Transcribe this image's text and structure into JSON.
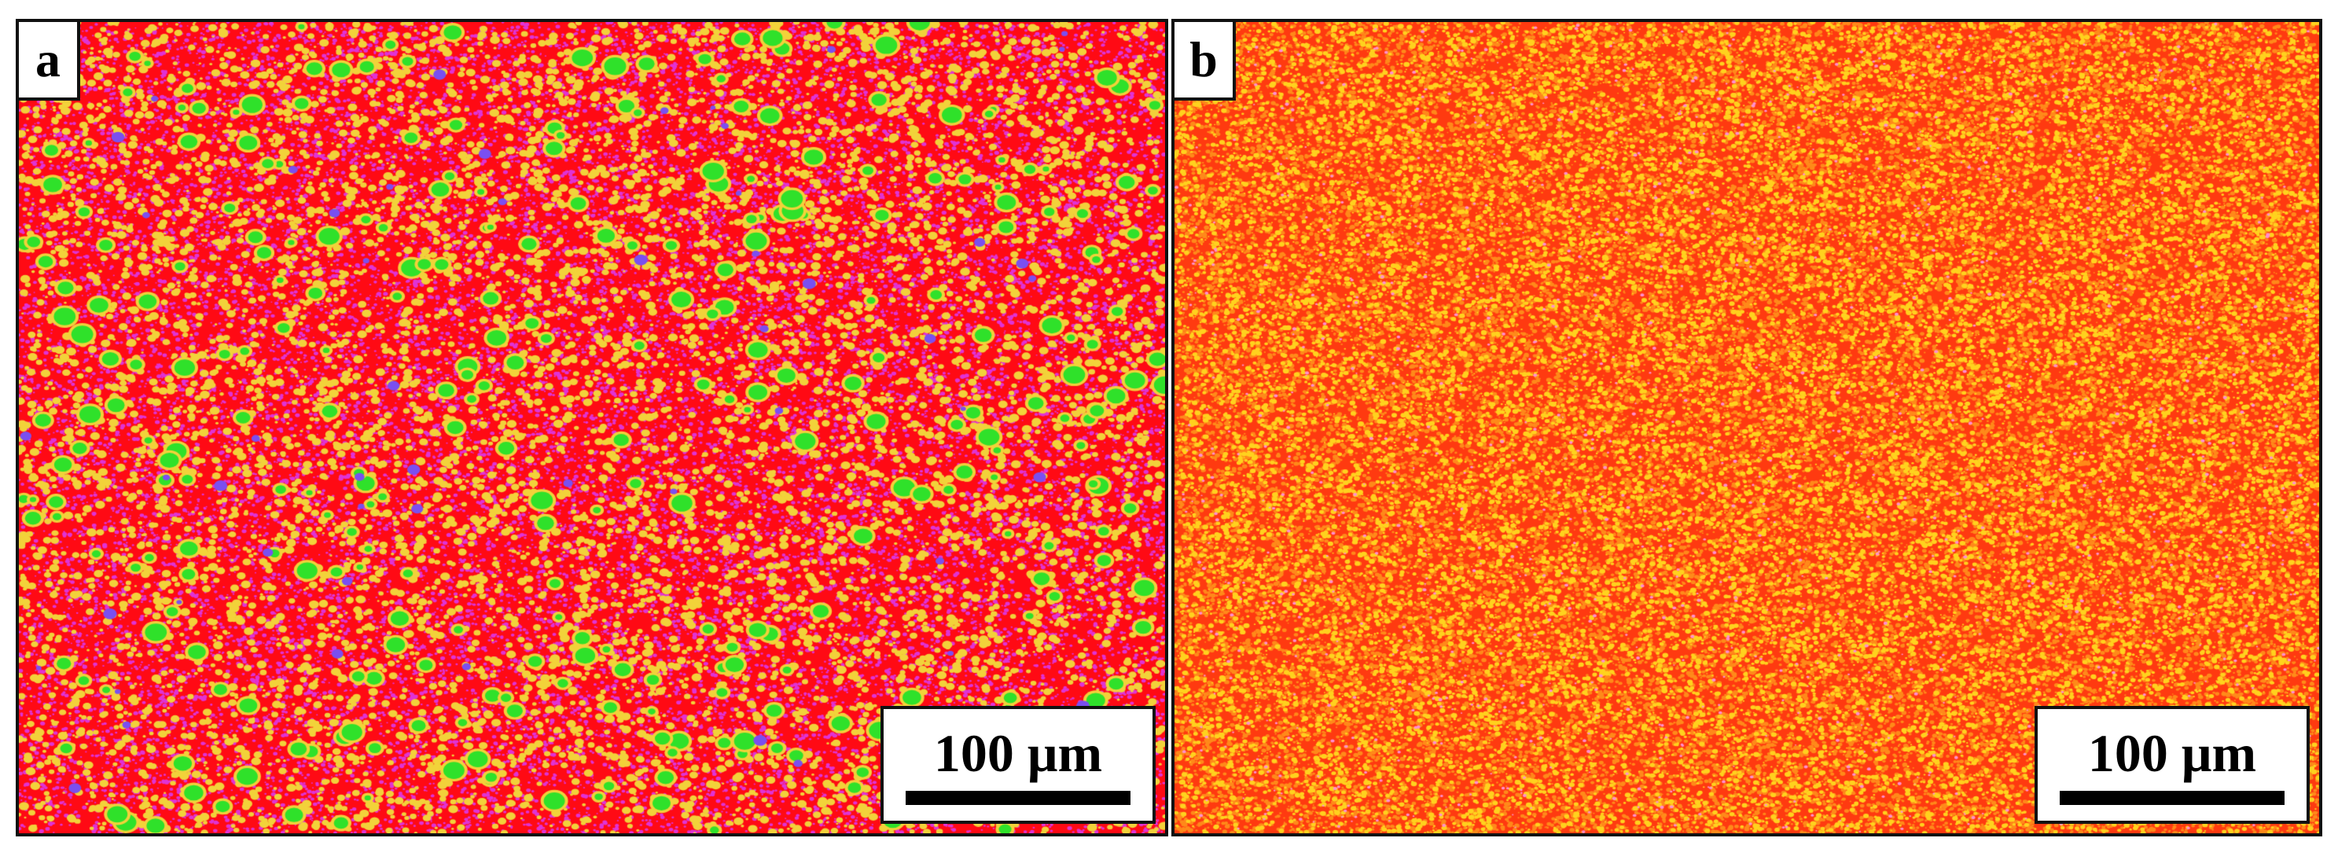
{
  "figure": {
    "panels": [
      {
        "label": "a",
        "scale_bar_text": "100 μm",
        "colors": {
          "background": "#ff0a14",
          "speckle_yellow": "#f2d23a",
          "speckle_magenta": "#e033d6",
          "particle_green": "#2fe12a",
          "particle_blue": "#7a4ff0"
        }
      },
      {
        "label": "b",
        "scale_bar_text": "100 μm",
        "colors": {
          "background": "#ff3a10",
          "speckle_yellow": "#ffd21e",
          "speckle_orange": "#ff8a1a",
          "speckle_pink": "#ff8fd0"
        }
      }
    ]
  }
}
